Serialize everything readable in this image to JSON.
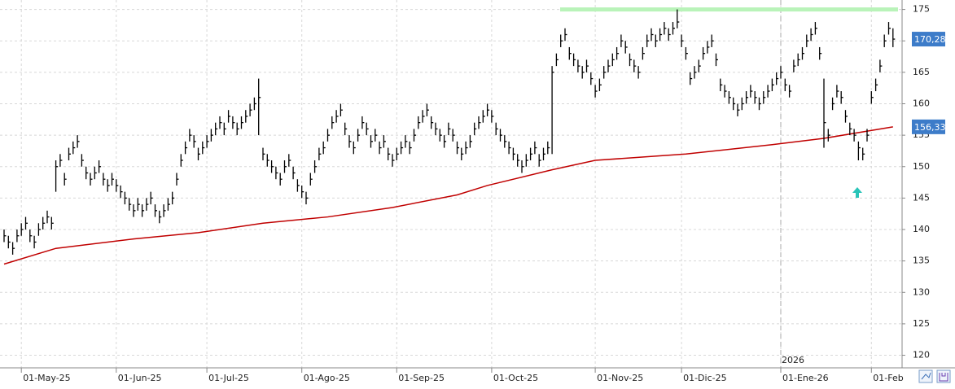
{
  "chart_data": {
    "type": "ohlc",
    "xlim": [
      0,
      207
    ],
    "xticks": [
      {
        "value": 4,
        "label": "01-May-25"
      },
      {
        "value": 26,
        "label": "01-Jun-25"
      },
      {
        "value": 47,
        "label": "01-Jul-25"
      },
      {
        "value": 69,
        "label": "01-Ago-25"
      },
      {
        "value": 91,
        "label": "01-Sep-25"
      },
      {
        "value": 113,
        "label": "01-Oct-25"
      },
      {
        "value": 137,
        "label": "01-Nov-25"
      },
      {
        "value": 157,
        "label": "01-Dic-25"
      },
      {
        "value": 180,
        "label": "01-Ene-26"
      },
      {
        "value": 201,
        "label": "01-Feb"
      }
    ],
    "ylim": [
      118,
      176.5
    ],
    "yticks": [
      120,
      125,
      130,
      135,
      140,
      145,
      150,
      155,
      160,
      165,
      170,
      175
    ],
    "grid": true,
    "year_marker": {
      "value": 180,
      "label": "2026"
    },
    "bar_color": "#000000",
    "high": [
      140,
      139,
      138,
      140,
      141,
      142,
      140,
      139,
      141,
      142,
      143,
      142,
      151,
      152,
      149,
      153,
      154,
      155,
      152,
      150,
      149,
      150,
      151,
      149,
      148,
      149,
      148,
      147,
      146,
      145,
      144,
      145,
      144,
      145,
      146,
      144,
      143,
      144,
      145,
      146,
      149,
      152,
      154,
      156,
      155,
      153,
      154,
      155,
      156,
      157,
      158,
      157,
      159,
      158,
      157,
      158,
      159,
      160,
      161,
      164,
      153,
      152,
      151,
      150,
      149,
      151,
      152,
      150,
      148,
      147,
      146,
      149,
      151,
      153,
      154,
      156,
      158,
      159,
      160,
      157,
      155,
      154,
      156,
      158,
      157,
      155,
      156,
      154,
      155,
      153,
      152,
      153,
      154,
      155,
      154,
      156,
      158,
      159,
      160,
      158,
      157,
      156,
      155,
      157,
      156,
      154,
      153,
      154,
      155,
      157,
      158,
      159,
      160,
      159,
      157,
      156,
      155,
      154,
      153,
      152,
      151,
      152,
      153,
      154,
      152,
      153,
      154,
      166,
      168,
      171,
      172,
      169,
      168,
      167,
      166,
      167,
      165,
      163,
      164,
      166,
      167,
      168,
      169,
      171,
      170,
      168,
      167,
      166,
      169,
      171,
      172,
      171,
      172,
      173,
      172,
      173,
      175,
      171,
      169,
      165,
      166,
      167,
      169,
      170,
      171,
      168,
      164,
      163,
      162,
      161,
      160,
      161,
      162,
      163,
      162,
      161,
      162,
      163,
      164,
      165,
      166,
      164,
      163,
      167,
      168,
      169,
      171,
      172,
      173,
      169,
      164,
      156,
      161,
      163,
      162,
      159,
      157,
      156,
      154,
      153,
      156,
      162,
      164,
      167,
      171,
      173,
      172
    ],
    "low": [
      138,
      137,
      136,
      138,
      139,
      140,
      138,
      137,
      139,
      140,
      141,
      140,
      146,
      150,
      147,
      151,
      152,
      153,
      150,
      148,
      147,
      148,
      149,
      147,
      146,
      147,
      146,
      145,
      144,
      143,
      142,
      143,
      142,
      143,
      144,
      142,
      141,
      142,
      143,
      144,
      147,
      150,
      152,
      154,
      153,
      151,
      152,
      153,
      154,
      155,
      156,
      155,
      157,
      156,
      155,
      156,
      157,
      158,
      159,
      155,
      151,
      150,
      149,
      148,
      147,
      149,
      150,
      148,
      146,
      145,
      144,
      147,
      149,
      151,
      152,
      154,
      156,
      157,
      158,
      155,
      153,
      152,
      154,
      156,
      155,
      153,
      154,
      152,
      153,
      151,
      150,
      151,
      152,
      153,
      152,
      154,
      156,
      157,
      158,
      156,
      155,
      154,
      153,
      155,
      154,
      152,
      151,
      152,
      153,
      155,
      156,
      157,
      158,
      157,
      155,
      154,
      153,
      152,
      151,
      150,
      149,
      150,
      151,
      152,
      150,
      151,
      152,
      152,
      166,
      169,
      170,
      167,
      166,
      165,
      164,
      165,
      163,
      161,
      162,
      164,
      165,
      166,
      167,
      169,
      168,
      166,
      165,
      164,
      167,
      169,
      170,
      169,
      170,
      171,
      170,
      171,
      172,
      169,
      167,
      163,
      164,
      165,
      167,
      168,
      169,
      166,
      162,
      161,
      160,
      159,
      158,
      159,
      160,
      161,
      160,
      159,
      160,
      161,
      162,
      163,
      164,
      162,
      161,
      165,
      166,
      167,
      169,
      170,
      171,
      167,
      153,
      154,
      159,
      161,
      160,
      157,
      155,
      154,
      151,
      151,
      154,
      160,
      162,
      165,
      169,
      171,
      169
    ],
    "close": [
      139,
      138,
      137,
      139,
      140,
      141,
      139,
      138,
      140,
      141,
      142,
      141,
      150,
      151,
      148,
      152,
      153,
      154,
      151,
      149,
      148,
      149,
      150,
      148,
      147,
      148,
      147,
      146,
      145,
      144,
      143,
      144,
      143,
      144,
      145,
      143,
      142,
      143,
      144,
      145,
      148,
      151,
      153,
      155,
      154,
      152,
      153,
      154,
      155,
      156,
      157,
      156,
      158,
      157,
      156,
      157,
      158,
      159,
      160,
      161,
      152,
      151,
      150,
      149,
      148,
      150,
      151,
      149,
      147,
      146,
      145,
      148,
      150,
      152,
      153,
      155,
      157,
      158,
      159,
      156,
      154,
      153,
      155,
      157,
      156,
      154,
      155,
      153,
      154,
      152,
      151,
      152,
      153,
      154,
      153,
      155,
      157,
      158,
      159,
      157,
      156,
      155,
      154,
      156,
      155,
      153,
      152,
      153,
      154,
      156,
      157,
      158,
      159,
      158,
      156,
      155,
      154,
      153,
      152,
      151,
      150,
      151,
      152,
      153,
      151,
      152,
      153,
      165,
      167,
      170,
      171,
      168,
      167,
      166,
      165,
      166,
      164,
      162,
      163,
      165,
      166,
      167,
      168,
      170,
      169,
      167,
      166,
      165,
      168,
      170,
      171,
      170,
      171,
      172,
      171,
      172,
      173,
      170,
      168,
      164,
      165,
      166,
      168,
      169,
      170,
      167,
      163,
      162,
      161,
      160,
      159,
      160,
      161,
      162,
      161,
      160,
      161,
      162,
      163,
      164,
      165,
      163,
      162,
      166,
      167,
      168,
      170,
      171,
      172,
      168,
      157,
      155,
      160,
      162,
      161,
      158,
      156,
      155,
      153,
      152,
      155,
      161,
      163,
      166,
      170,
      172,
      170.28
    ],
    "moving_average": {
      "color": "#c00000",
      "x": [
        0,
        12,
        30,
        45,
        60,
        75,
        90,
        105,
        112,
        127,
        137,
        158,
        178,
        190,
        206
      ],
      "values": [
        134.5,
        137,
        138.5,
        139.5,
        141,
        142,
        143.5,
        145.5,
        147,
        149.5,
        151,
        152,
        153.5,
        154.5,
        156.33
      ]
    },
    "resistance": {
      "value": 175,
      "color": "#b9f3b9"
    },
    "price_tags": [
      {
        "value": 170.28,
        "label": "170,28"
      },
      {
        "value": 156.33,
        "label": "156,33"
      }
    ],
    "tag_color": "#3d7cc9"
  }
}
